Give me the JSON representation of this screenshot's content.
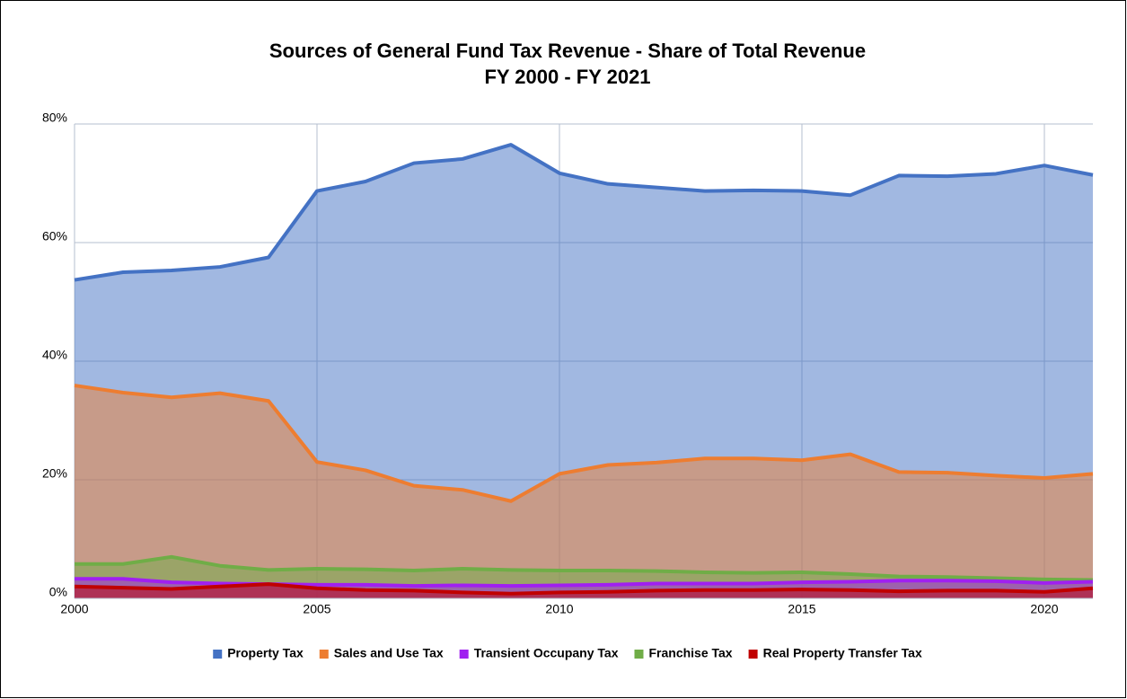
{
  "chart_data": {
    "type": "area",
    "title": "Sources of General Fund Tax Revenue - Share of Total Revenue",
    "subtitle": "FY 2000 - FY 2021",
    "x": [
      2000,
      2001,
      2002,
      2003,
      2004,
      2005,
      2006,
      2007,
      2008,
      2009,
      2010,
      2011,
      2012,
      2013,
      2014,
      2015,
      2016,
      2017,
      2018,
      2019,
      2020,
      2021
    ],
    "xlim": [
      2000,
      2021
    ],
    "xticks": [
      2000,
      2005,
      2010,
      2015,
      2020
    ],
    "ylim": [
      0,
      80
    ],
    "yticks": [
      {
        "value": 0,
        "label": "0%"
      },
      {
        "value": 20,
        "label": "20%"
      },
      {
        "value": 40,
        "label": "40%"
      },
      {
        "value": 60,
        "label": "60%"
      },
      {
        "value": 80,
        "label": "80%"
      }
    ],
    "grid": true,
    "legend": "bottom",
    "series": [
      {
        "name": "Property Tax",
        "color": "#4472c4",
        "values": [
          53.7,
          55,
          55.3,
          55.9,
          57.5,
          68.7,
          70.3,
          73.4,
          74.1,
          76.5,
          71.7,
          69.9,
          69.3,
          68.7,
          68.8,
          68.7,
          68,
          71.3,
          71.2,
          71.6,
          73,
          71.4
        ]
      },
      {
        "name": "Sales and Use Tax",
        "color": "#ed7d31",
        "values": [
          35.9,
          34.7,
          33.9,
          34.6,
          33.3,
          23,
          21.6,
          19,
          18.3,
          16.4,
          21,
          22.5,
          22.9,
          23.6,
          23.6,
          23.3,
          24.3,
          21.3,
          21.2,
          20.7,
          20.3,
          21
        ]
      },
      {
        "name": "Transient Occupany Tax",
        "color": "#a020f0",
        "values": [
          3.3,
          3.3,
          2.7,
          2.5,
          2.4,
          2.3,
          2.3,
          2.1,
          2.2,
          2.1,
          2.2,
          2.3,
          2.5,
          2.5,
          2.5,
          2.7,
          2.8,
          3,
          3,
          2.9,
          2.6,
          2.8
        ]
      },
      {
        "name": "Franchise Tax",
        "color": "#70ad47",
        "values": [
          5.8,
          5.8,
          7,
          5.5,
          4.8,
          5,
          4.9,
          4.7,
          5,
          4.8,
          4.7,
          4.7,
          4.6,
          4.4,
          4.3,
          4.4,
          4.1,
          3.7,
          3.6,
          3.4,
          3.2,
          3.1
        ]
      },
      {
        "name": "Real Property Transfer Tax",
        "color": "#c00000",
        "values": [
          2,
          1.8,
          1.6,
          2,
          2.4,
          1.7,
          1.4,
          1.3,
          1,
          0.8,
          1,
          1.1,
          1.3,
          1.4,
          1.4,
          1.5,
          1.4,
          1.2,
          1.3,
          1.3,
          1.1,
          1.7
        ]
      }
    ],
    "draw_order": [
      0,
      1,
      3,
      2,
      4
    ]
  }
}
